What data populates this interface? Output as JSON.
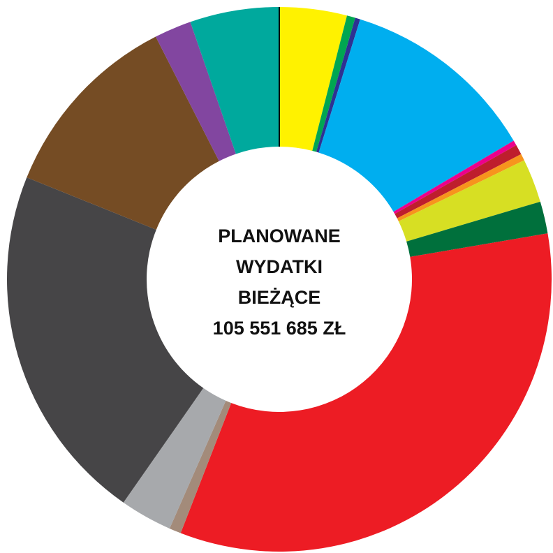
{
  "chart_data": {
    "type": "pie",
    "donut": true,
    "center_text": [
      "PLANOWANE",
      "WYDATKI",
      "BIEŻĄCE",
      "105 551 685 ZŁ"
    ],
    "values": [
      4.0,
      0.5,
      0.3,
      11.7,
      0.3,
      0.6,
      0.4,
      2.6,
      1.9,
      33.6,
      0.7,
      3.1,
      21.4,
      11.4,
      2.2,
      5.3
    ],
    "colors": [
      "#fff200",
      "#00a651",
      "#2e3192",
      "#00aeef",
      "#ec008c",
      "#be1e2d",
      "#f7941d",
      "#d7df23",
      "#00703c",
      "#ed1c24",
      "#a38b7a",
      "#a7a9ac",
      "#464547",
      "#754c24",
      "#8246a0",
      "#00a99d"
    ]
  }
}
